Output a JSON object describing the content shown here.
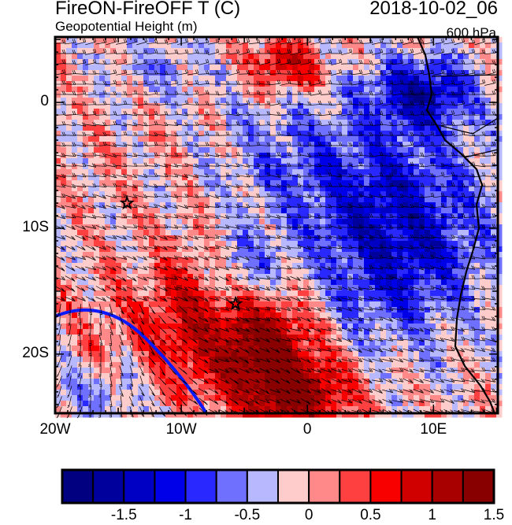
{
  "header": {
    "title": "FireON-FireOFF T (C)",
    "datetime": "2018-10-02_06",
    "subtitle": "Geopotential Height (m)",
    "level": "600 hPa"
  },
  "axes": {
    "lat_ticks": [
      {
        "value": 0,
        "label": "0"
      },
      {
        "value": -10,
        "label": "10S"
      },
      {
        "value": -20,
        "label": "20S"
      }
    ],
    "lon_ticks": [
      {
        "value": -20,
        "label": "20W"
      },
      {
        "value": -10,
        "label": "10W"
      },
      {
        "value": 0,
        "label": "0"
      },
      {
        "value": 10,
        "label": "10E"
      }
    ],
    "lon_range": [
      -20,
      15.1
    ],
    "lat_range": [
      -24.7,
      5.2
    ]
  },
  "colorbar": {
    "colors": [
      "#000080",
      "#00009c",
      "#0000c4",
      "#0000e8",
      "#2828ff",
      "#7070ff",
      "#b8b8ff",
      "#ffcccc",
      "#ff8888",
      "#ff4040",
      "#f80000",
      "#d00000",
      "#a80000",
      "#880000"
    ],
    "levels": [
      -1.5,
      -1.25,
      -1,
      -0.75,
      -0.5,
      -0.25,
      0,
      0.25,
      0.5,
      0.75,
      1,
      1.25,
      1.5
    ],
    "labels": [
      "-1.5",
      "-1",
      "-0.5",
      "0",
      "0.5",
      "1",
      "1.5"
    ]
  },
  "markers": [
    {
      "type": "star",
      "lon": -14.3,
      "lat": -8.0
    },
    {
      "type": "star",
      "lon": -5.7,
      "lat": -16.0
    }
  ]
}
